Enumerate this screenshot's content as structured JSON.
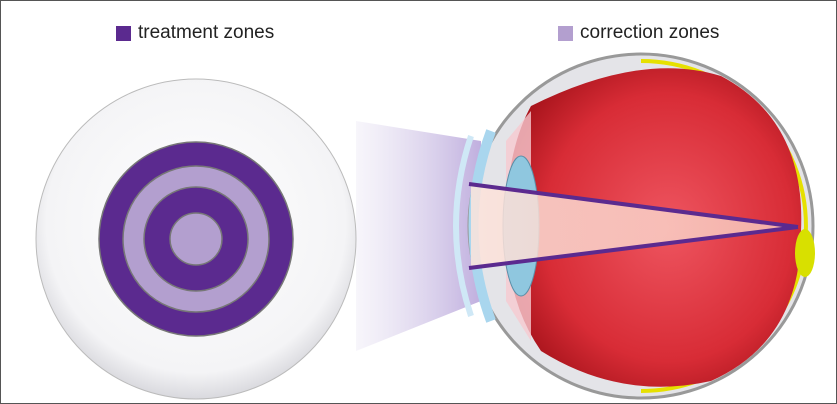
{
  "legend": [
    {
      "label": "treatment zones"
    },
    {
      "label": "correction zones"
    }
  ]
}
